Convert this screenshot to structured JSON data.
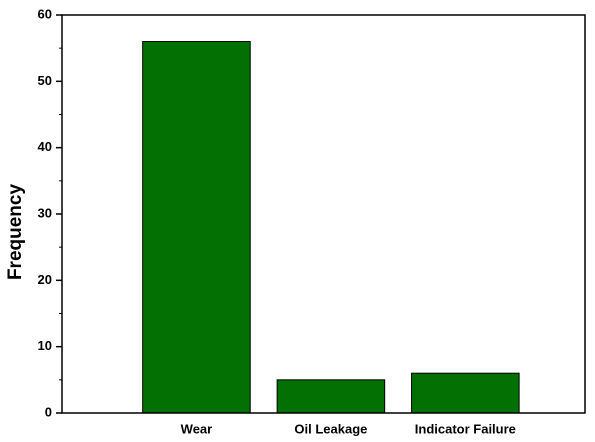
{
  "chart_data": {
    "type": "bar",
    "y_label": "Frequency",
    "categories": [
      "Wear",
      "Oil Leakage",
      "Indicator Failure"
    ],
    "values": [
      56,
      5,
      6
    ],
    "color": "#037003",
    "ylim": [
      0,
      60
    ],
    "yticks": [
      0,
      10,
      20,
      30,
      40,
      50,
      60
    ],
    "grid": false
  }
}
